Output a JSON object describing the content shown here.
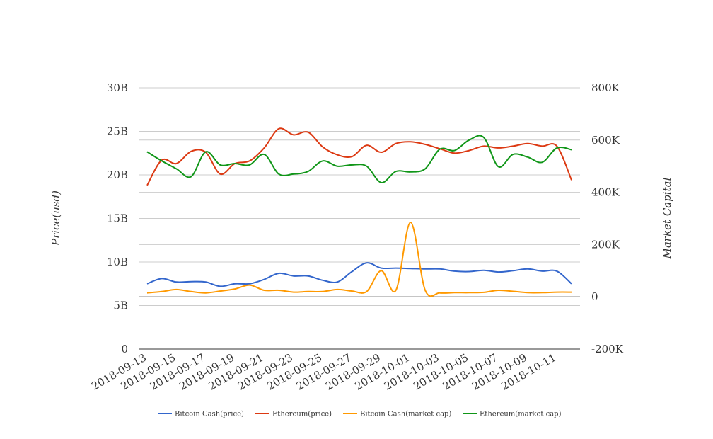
{
  "chart_data": {
    "type": "line",
    "title": "",
    "ylabel_left": "Price(usd)",
    "ylabel_right": "Market Capital",
    "xlabel": "",
    "grid": true,
    "legend_position": "bottom",
    "x": [
      "2018-09-13",
      "2018-09-14",
      "2018-09-15",
      "2018-09-16",
      "2018-09-17",
      "2018-09-18",
      "2018-09-19",
      "2018-09-20",
      "2018-09-21",
      "2018-09-22",
      "2018-09-23",
      "2018-09-24",
      "2018-09-25",
      "2018-09-26",
      "2018-09-27",
      "2018-09-28",
      "2018-09-29",
      "2018-09-30",
      "2018-10-01",
      "2018-10-02",
      "2018-10-03",
      "2018-10-04",
      "2018-10-05",
      "2018-10-06",
      "2018-10-07",
      "2018-10-08",
      "2018-10-09",
      "2018-10-10",
      "2018-10-11",
      "2018-10-12"
    ],
    "x_tick_labels": [
      "2018-09-13",
      "2018-09-15",
      "2018-09-17",
      "2018-09-19",
      "2018-09-21",
      "2018-09-23",
      "2018-09-25",
      "2018-09-27",
      "2018-09-29",
      "2018-10-01",
      "2018-10-03",
      "2018-10-05",
      "2018-10-07",
      "2018-10-09",
      "2018-10-11"
    ],
    "y_left": {
      "ticks": [
        "0",
        "5B",
        "10B",
        "15B",
        "20B",
        "25B",
        "30B"
      ],
      "range": [
        0,
        30000000000
      ]
    },
    "y_right": {
      "ticks": [
        "-200K",
        "0",
        "200K",
        "400K",
        "600K",
        "800K"
      ],
      "range": [
        -200000,
        800000
      ]
    },
    "series": [
      {
        "name": "Bitcoin Cash(price)",
        "axis": "left",
        "color": "#3366cc",
        "values": [
          7500000000.0,
          8100000000.0,
          7700000000.0,
          7750000000.0,
          7700000000.0,
          7200000000.0,
          7500000000.0,
          7500000000.0,
          8000000000.0,
          8700000000.0,
          8400000000.0,
          8400000000.0,
          7900000000.0,
          7700000000.0,
          8900000000.0,
          9900000000.0,
          9300000000.0,
          9300000000.0,
          9250000000.0,
          9200000000.0,
          9200000000.0,
          8950000000.0,
          8900000000.0,
          9050000000.0,
          8850000000.0,
          9000000000.0,
          9200000000.0,
          8950000000.0,
          8950000000.0,
          7500000000.0
        ]
      },
      {
        "name": "Ethereum(price)",
        "axis": "left",
        "color": "#dc3912",
        "values": [
          18800000000.0,
          21700000000.0,
          21300000000.0,
          22700000000.0,
          22600000000.0,
          20100000000.0,
          21300000000.0,
          21600000000.0,
          23100000000.0,
          25300000000.0,
          24600000000.0,
          24900000000.0,
          23200000000.0,
          22300000000.0,
          22100000000.0,
          23400000000.0,
          22600000000.0,
          23600000000.0,
          23800000000.0,
          23500000000.0,
          23000000000.0,
          22500000000.0,
          22800000000.0,
          23300000000.0,
          23100000000.0,
          23300000000.0,
          23600000000.0,
          23300000000.0,
          23300000000.0,
          19400000000.0
        ]
      },
      {
        "name": "Bitcoin Cash(market cap)",
        "axis": "right",
        "color": "#ff9900",
        "values": [
          15000,
          20000,
          28000,
          20000,
          15000,
          22000,
          30000,
          45000,
          25000,
          25000,
          18000,
          20000,
          20000,
          28000,
          22000,
          20000,
          100000,
          25000,
          285000,
          25000,
          15000,
          16000,
          16000,
          17000,
          25000,
          21000,
          16000,
          16000,
          18000,
          18000
        ]
      },
      {
        "name": "Ethereum(market cap)",
        "axis": "right",
        "color": "#109618",
        "values": [
          555000,
          520000,
          490000,
          460000,
          555000,
          505000,
          510000,
          505000,
          545000,
          470000,
          470000,
          480000,
          520000,
          500000,
          505000,
          500000,
          437000,
          480000,
          478000,
          490000,
          565000,
          560000,
          600000,
          610000,
          498000,
          545000,
          535000,
          515000,
          570000,
          563000
        ]
      }
    ]
  }
}
